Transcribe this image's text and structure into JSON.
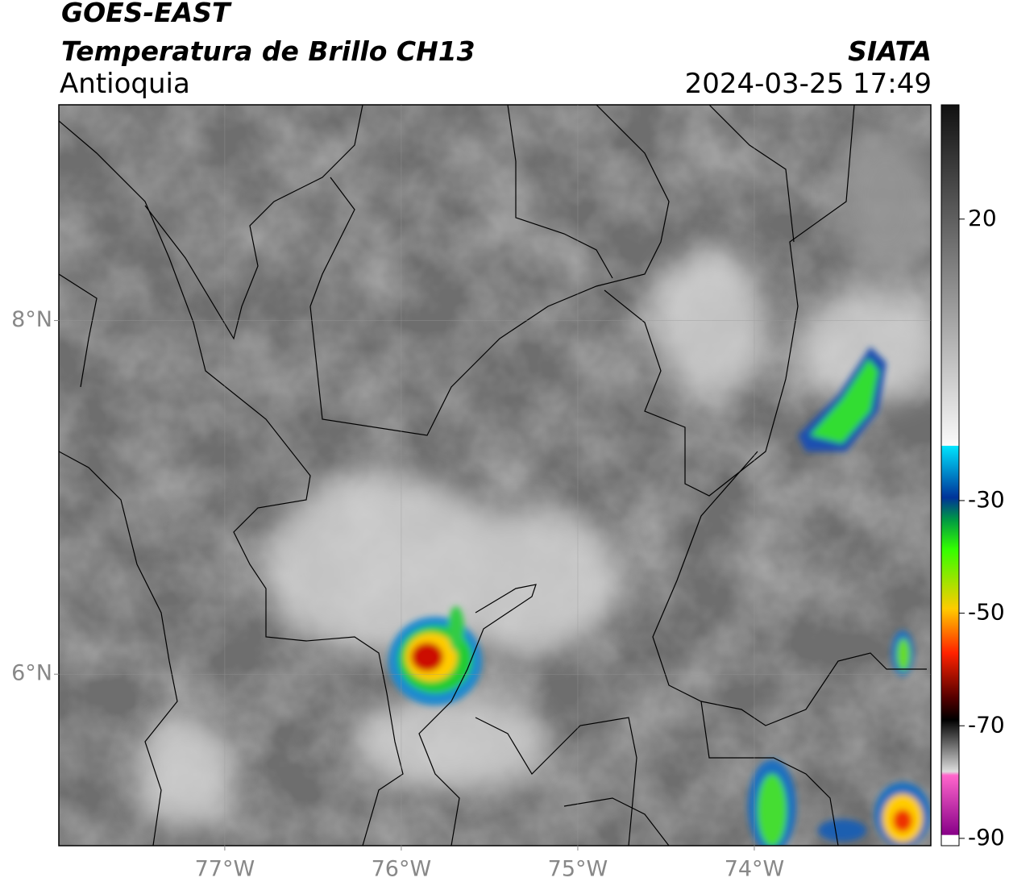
{
  "header": {
    "title": "GOES-EAST",
    "subtitle": "Temperatura de Brillo CH13",
    "region": "Antioquia",
    "source": "SIATA",
    "timestamp": "2024-03-25 17:49"
  },
  "map": {
    "lon_range": [
      -77.94,
      -73.0
    ],
    "lat_range": [
      5.03,
      9.22
    ],
    "lon_ticks": [
      {
        "value": -77,
        "label": "77°W"
      },
      {
        "value": -76,
        "label": "76°W"
      },
      {
        "value": -75,
        "label": "75°W"
      },
      {
        "value": -74,
        "label": "74°W"
      }
    ],
    "lat_ticks": [
      {
        "value": 8,
        "label": "8°N"
      },
      {
        "value": 6,
        "label": "6°N"
      }
    ]
  },
  "colorbar": {
    "range": [
      -91.3,
      40.3
    ],
    "ticks": [
      20,
      -30,
      -50,
      -70,
      -90
    ]
  }
}
